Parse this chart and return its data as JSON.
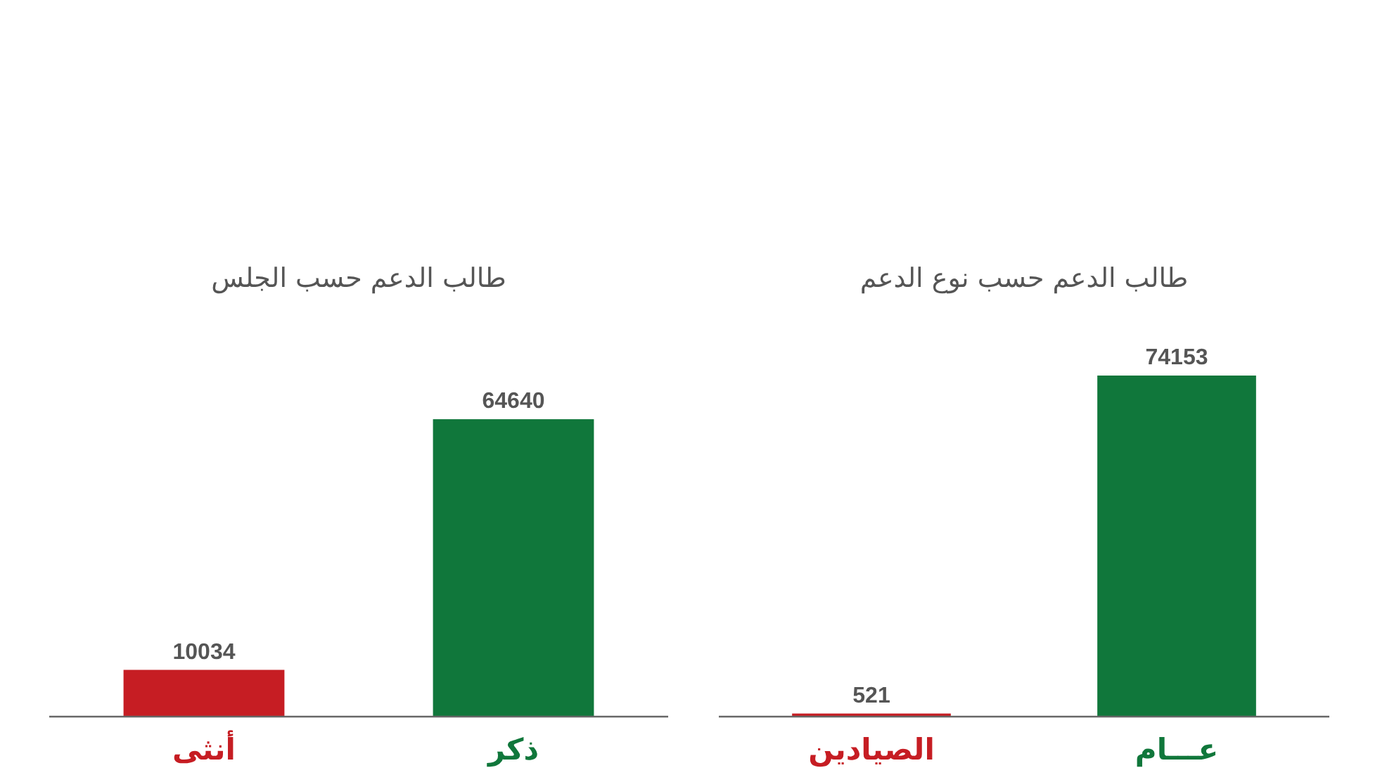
{
  "chart_data": [
    {
      "type": "bar",
      "title": "طالب الدعم حسب الجلس",
      "categories": [
        "أنثى",
        "ذكر"
      ],
      "colors": [
        "#c61d23",
        "#10773b"
      ],
      "values": [
        10034,
        64640
      ],
      "data_labels": true
    },
    {
      "type": "bar",
      "title": "طالب الدعم حسب نوع الدعم",
      "categories": [
        "الصيادين",
        "عـــام"
      ],
      "colors": [
        "#c61d23",
        "#10773b"
      ],
      "values": [
        521,
        74153
      ],
      "data_labels": true
    }
  ]
}
